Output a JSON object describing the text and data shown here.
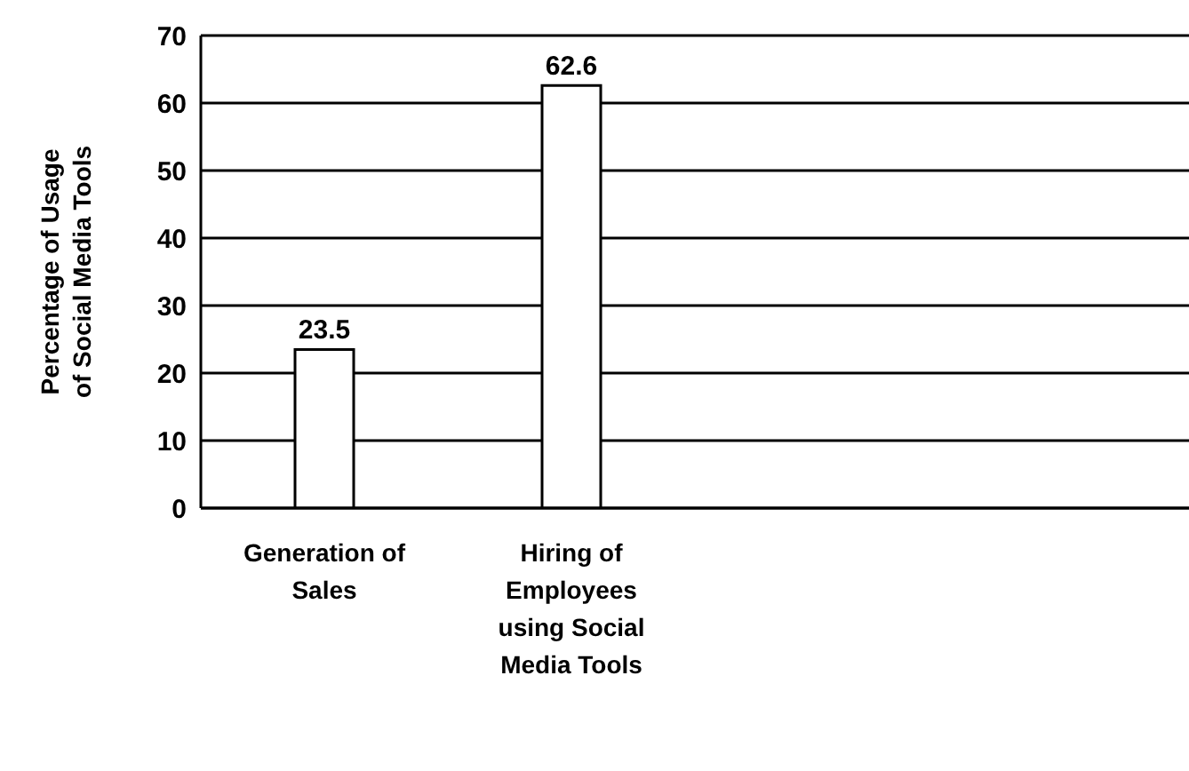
{
  "chart_data": {
    "type": "bar",
    "ylabel": "Percentage of  Usage\nof Social  Media Tools",
    "categories": [
      "Generation of Sales",
      "Hiring of Employees using Social Media Tools",
      null,
      null
    ],
    "values": [
      23.5,
      62.6,
      null,
      null
    ],
    "color": "#ffffff",
    "data_labels": true,
    "ylim": [
      0,
      70
    ],
    "yticks": [
      0,
      10,
      20,
      30,
      40,
      50,
      60,
      70
    ],
    "grid": "y"
  }
}
